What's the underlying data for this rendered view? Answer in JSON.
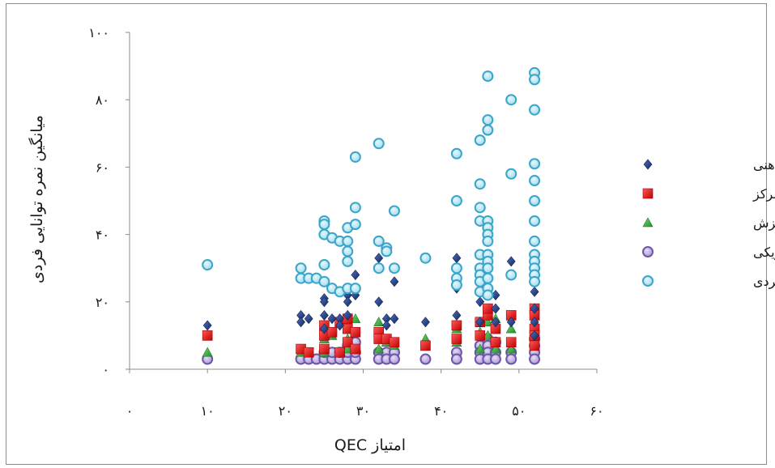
{
  "chart_data": {
    "type": "scatter",
    "xlabel": "امتیاز QEC",
    "ylabel": "میانگین نمره توانایی فردی",
    "xlim": [
      0,
      60
    ],
    "ylim": [
      0,
      100
    ],
    "x_ticks": [
      0,
      10,
      20,
      30,
      40,
      50,
      60
    ],
    "x_tick_labels": [
      "۰",
      "۱۰",
      "۲۰",
      "۳۰",
      "۴۰",
      "۵۰",
      "۶۰"
    ],
    "y_ticks": [
      0,
      20,
      40,
      60,
      80,
      100
    ],
    "y_tick_labels": [
      "۰",
      "۲۰",
      "۴۰",
      "۶۰",
      "۸۰",
      "۱۰۰"
    ],
    "grid": false,
    "legend_position": "right",
    "series": [
      {
        "name": "خستگی ذهنی",
        "marker": "diamond",
        "color": "#1f3f8f",
        "points": [
          [
            10,
            13
          ],
          [
            22,
            16
          ],
          [
            22,
            14
          ],
          [
            23,
            15
          ],
          [
            25,
            21
          ],
          [
            25,
            20
          ],
          [
            25,
            16
          ],
          [
            25,
            12
          ],
          [
            26,
            15
          ],
          [
            27,
            15
          ],
          [
            27,
            13
          ],
          [
            28,
            22
          ],
          [
            28,
            20
          ],
          [
            28,
            16
          ],
          [
            29,
            28
          ],
          [
            29,
            22
          ],
          [
            32,
            33
          ],
          [
            32,
            20
          ],
          [
            33,
            15
          ],
          [
            33,
            13
          ],
          [
            34,
            26
          ],
          [
            34,
            15
          ],
          [
            38,
            14
          ],
          [
            42,
            33
          ],
          [
            42,
            24
          ],
          [
            42,
            16
          ],
          [
            45,
            30
          ],
          [
            45,
            20
          ],
          [
            45,
            14
          ],
          [
            47,
            22
          ],
          [
            47,
            18
          ],
          [
            47,
            14
          ],
          [
            49,
            32
          ],
          [
            49,
            14
          ],
          [
            52,
            38
          ],
          [
            52,
            23
          ],
          [
            52,
            18
          ],
          [
            52,
            14
          ],
          [
            52,
            10
          ]
        ]
      },
      {
        "name": "تمرکز",
        "marker": "square",
        "color": "#ee1c1c",
        "points": [
          [
            10,
            10
          ],
          [
            22,
            6
          ],
          [
            23,
            5
          ],
          [
            25,
            13
          ],
          [
            25,
            10
          ],
          [
            25,
            6
          ],
          [
            26,
            11
          ],
          [
            27,
            14
          ],
          [
            27,
            5
          ],
          [
            28,
            15
          ],
          [
            28,
            12
          ],
          [
            28,
            8
          ],
          [
            29,
            11
          ],
          [
            29,
            6
          ],
          [
            32,
            11
          ],
          [
            32,
            9
          ],
          [
            33,
            9
          ],
          [
            34,
            8
          ],
          [
            38,
            7
          ],
          [
            42,
            9
          ],
          [
            42,
            13
          ],
          [
            45,
            14
          ],
          [
            45,
            10
          ],
          [
            46,
            16
          ],
          [
            46,
            18
          ],
          [
            47,
            12
          ],
          [
            47,
            8
          ],
          [
            49,
            16
          ],
          [
            49,
            8
          ],
          [
            52,
            18
          ],
          [
            52,
            16
          ],
          [
            52,
            12
          ],
          [
            52,
            10
          ],
          [
            52,
            7
          ]
        ]
      },
      {
        "name": "انگیزش",
        "marker": "triangle",
        "color": "#33a640",
        "points": [
          [
            10,
            5
          ],
          [
            22,
            5
          ],
          [
            23,
            5
          ],
          [
            25,
            9
          ],
          [
            25,
            5
          ],
          [
            26,
            10
          ],
          [
            27,
            5
          ],
          [
            28,
            9
          ],
          [
            28,
            6
          ],
          [
            29,
            15
          ],
          [
            29,
            11
          ],
          [
            32,
            14
          ],
          [
            32,
            6
          ],
          [
            33,
            8
          ],
          [
            34,
            7
          ],
          [
            38,
            9
          ],
          [
            42,
            12
          ],
          [
            42,
            8
          ],
          [
            45,
            11
          ],
          [
            45,
            6
          ],
          [
            46,
            14
          ],
          [
            46,
            10
          ],
          [
            47,
            15
          ],
          [
            47,
            6
          ],
          [
            49,
            12
          ],
          [
            49,
            6
          ],
          [
            52,
            16
          ],
          [
            52,
            14
          ],
          [
            52,
            11
          ],
          [
            52,
            8
          ]
        ]
      },
      {
        "name": "فعالیت فیزیکی",
        "marker": "circle",
        "color": "#8c72c0",
        "points": [
          [
            10,
            3
          ],
          [
            22,
            3
          ],
          [
            23,
            3
          ],
          [
            24,
            3
          ],
          [
            25,
            3
          ],
          [
            25,
            5
          ],
          [
            26,
            3
          ],
          [
            26,
            5
          ],
          [
            27,
            3
          ],
          [
            27,
            5
          ],
          [
            28,
            3
          ],
          [
            28,
            5
          ],
          [
            28,
            7
          ],
          [
            29,
            3
          ],
          [
            29,
            5
          ],
          [
            29,
            8
          ],
          [
            32,
            5
          ],
          [
            32,
            3
          ],
          [
            33,
            5
          ],
          [
            33,
            3
          ],
          [
            34,
            5
          ],
          [
            34,
            3
          ],
          [
            38,
            3
          ],
          [
            42,
            5
          ],
          [
            42,
            3
          ],
          [
            45,
            7
          ],
          [
            45,
            5
          ],
          [
            45,
            3
          ],
          [
            46,
            9
          ],
          [
            46,
            7
          ],
          [
            46,
            5
          ],
          [
            46,
            3
          ],
          [
            47,
            8
          ],
          [
            47,
            5
          ],
          [
            47,
            3
          ],
          [
            49,
            5
          ],
          [
            49,
            3
          ],
          [
            52,
            9
          ],
          [
            52,
            7
          ],
          [
            52,
            5
          ],
          [
            52,
            3
          ]
        ]
      },
      {
        "name": "توانایی فردی",
        "marker": "circle",
        "color": "#4bb8d8",
        "points": [
          [
            10,
            31
          ],
          [
            22,
            30
          ],
          [
            22,
            27
          ],
          [
            23,
            27
          ],
          [
            24,
            27
          ],
          [
            25,
            44
          ],
          [
            25,
            43
          ],
          [
            25,
            40
          ],
          [
            25,
            31
          ],
          [
            25,
            26
          ],
          [
            26,
            39
          ],
          [
            26,
            24
          ],
          [
            27,
            38
          ],
          [
            27,
            23
          ],
          [
            28,
            42
          ],
          [
            28,
            38
          ],
          [
            28,
            35
          ],
          [
            28,
            32
          ],
          [
            28,
            24
          ],
          [
            29,
            63
          ],
          [
            29,
            48
          ],
          [
            29,
            43
          ],
          [
            29,
            24
          ],
          [
            32,
            67
          ],
          [
            32,
            38
          ],
          [
            32,
            30
          ],
          [
            33,
            36
          ],
          [
            33,
            35
          ],
          [
            34,
            47
          ],
          [
            34,
            30
          ],
          [
            38,
            33
          ],
          [
            42,
            64
          ],
          [
            42,
            50
          ],
          [
            42,
            30
          ],
          [
            42,
            27
          ],
          [
            42,
            25
          ],
          [
            45,
            68
          ],
          [
            45,
            55
          ],
          [
            45,
            48
          ],
          [
            45,
            44
          ],
          [
            45,
            34
          ],
          [
            45,
            30
          ],
          [
            45,
            28
          ],
          [
            45,
            26
          ],
          [
            45,
            23
          ],
          [
            46,
            87
          ],
          [
            46,
            74
          ],
          [
            46,
            71
          ],
          [
            46,
            44
          ],
          [
            46,
            42
          ],
          [
            46,
            40
          ],
          [
            46,
            38
          ],
          [
            46,
            34
          ],
          [
            46,
            32
          ],
          [
            46,
            30
          ],
          [
            46,
            27
          ],
          [
            46,
            24
          ],
          [
            46,
            22
          ],
          [
            49,
            80
          ],
          [
            49,
            58
          ],
          [
            49,
            28
          ],
          [
            52,
            88
          ],
          [
            52,
            86
          ],
          [
            52,
            77
          ],
          [
            52,
            61
          ],
          [
            52,
            56
          ],
          [
            52,
            50
          ],
          [
            52,
            44
          ],
          [
            52,
            38
          ],
          [
            52,
            34
          ],
          [
            52,
            32
          ],
          [
            52,
            30
          ],
          [
            52,
            28
          ],
          [
            52,
            26
          ]
        ]
      }
    ]
  }
}
